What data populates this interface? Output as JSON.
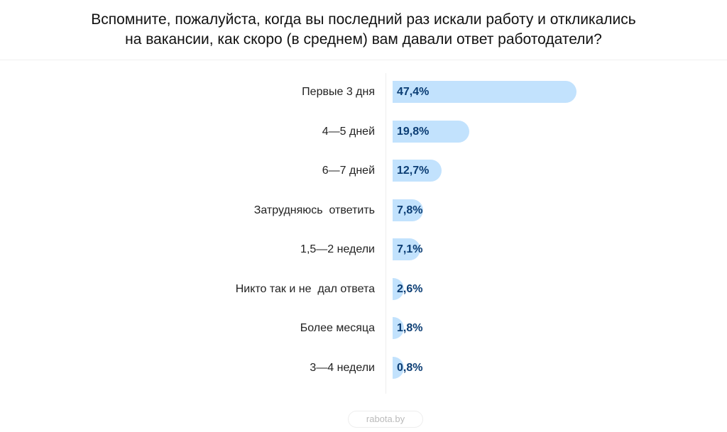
{
  "title_line1": "Вспомните, пожалуйста, когда вы последний раз искали работу и откликались",
  "title_line2": "на вакансии, как скоро (в среднем) вам давали ответ работодатели?",
  "logo": "rabota.by",
  "colors": {
    "bar": "#c2e2fd",
    "value_text": "#0b3d74"
  },
  "chart_data": {
    "type": "bar",
    "orientation": "horizontal",
    "title": "Вспомните, пожалуйста, когда вы последний раз искали работу и откликались на вакансии, как скоро (в среднем) вам давали ответ работодатели?",
    "categories": [
      "Первые 3 дня",
      "4—5 дней",
      "6—7 дней",
      "Затрудняюсь  ответить",
      "1,5—2 недели",
      "Никто так и не  дал ответа",
      "Более месяца",
      "3—4 недели"
    ],
    "values": [
      47.4,
      19.8,
      12.7,
      7.8,
      7.1,
      2.6,
      1.8,
      0.8
    ],
    "value_labels": [
      "47,4%",
      "19,8%",
      "12,7%",
      "7,8%",
      "7,1%",
      "2,6%",
      "1,8%",
      "0,8%"
    ],
    "unit": "%",
    "grid": false,
    "legend": "none"
  }
}
